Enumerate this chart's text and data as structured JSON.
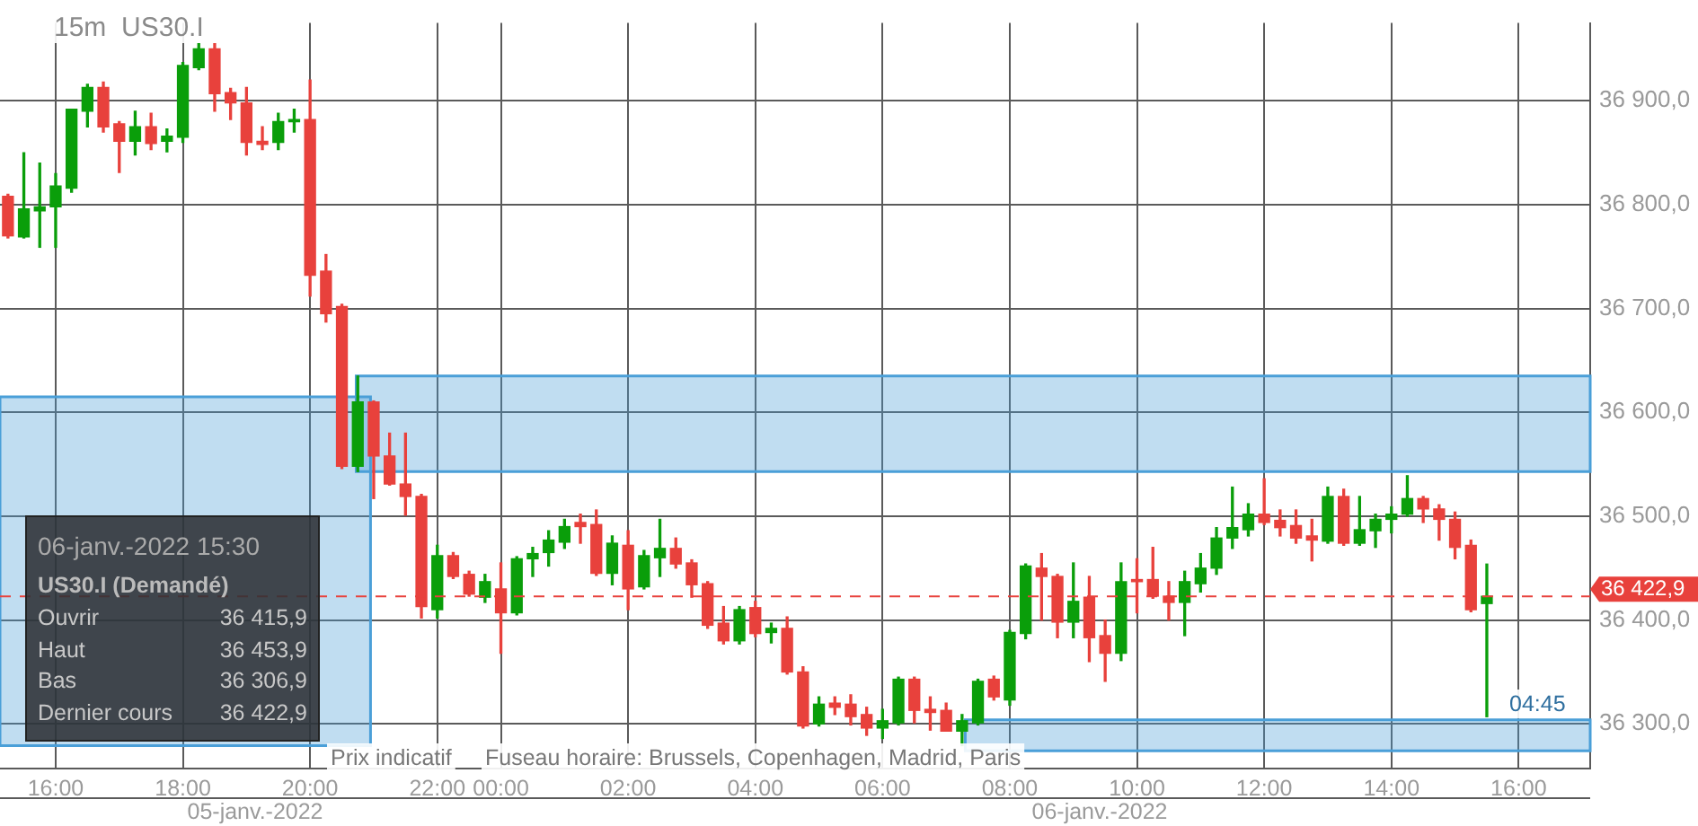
{
  "chart_data": {
    "type": "candlestick",
    "title": "15m  US30.I",
    "categories": [
      null,
      null,
      null,
      "16:00",
      null,
      null,
      null,
      null,
      null,
      null,
      null,
      "18:00",
      null,
      null,
      null,
      null,
      null,
      null,
      null,
      "20:00",
      null,
      null,
      null,
      null,
      null,
      null,
      null,
      "22:00",
      null,
      null,
      null,
      "00:00",
      null,
      null,
      null,
      null,
      null,
      null,
      null,
      "02:00",
      null,
      null,
      null,
      null,
      null,
      null,
      null,
      "04:00",
      null,
      null,
      null,
      null,
      null,
      null,
      null,
      "06:00",
      null,
      null,
      null,
      null,
      null,
      null,
      null,
      "08:00",
      null,
      null,
      null,
      null,
      null,
      null,
      null,
      "10:00",
      null,
      null,
      null,
      null,
      null,
      null,
      null,
      "12:00",
      null,
      null,
      null,
      null,
      null,
      null,
      null,
      "14:00",
      null,
      null,
      null,
      null,
      null,
      null,
      null,
      "16:00",
      null,
      null,
      null,
      null
    ],
    "ohlc": [
      [
        36808,
        36810,
        36768,
        36770
      ],
      [
        36769,
        36850,
        36768,
        36796
      ],
      [
        36794,
        36840,
        36759,
        36798
      ],
      [
        36798,
        36830,
        36759,
        36818
      ],
      [
        36816,
        36892,
        36812,
        36892
      ],
      [
        36890,
        36916,
        36875,
        36913
      ],
      [
        36913,
        36918,
        36870,
        36875
      ],
      [
        36878,
        36880,
        36831,
        36861
      ],
      [
        36861,
        36890,
        36848,
        36875
      ],
      [
        36875,
        36888,
        36853,
        36859
      ],
      [
        36861,
        36873,
        36851,
        36866
      ],
      [
        36865,
        36937,
        36860,
        36934
      ],
      [
        36932,
        36955,
        36930,
        36950
      ],
      [
        36950,
        36955,
        36890,
        36907
      ],
      [
        36908,
        36912,
        36882,
        36898
      ],
      [
        36898,
        36913,
        36848,
        36860
      ],
      [
        36861,
        36875,
        36853,
        36858
      ],
      [
        36860,
        36888,
        36853,
        36880
      ],
      [
        36880,
        36892,
        36870,
        36882
      ],
      [
        36882,
        36920,
        36712,
        36732
      ],
      [
        36736,
        36752,
        36687,
        36695
      ],
      [
        36702,
        36704,
        36546,
        36548
      ],
      [
        36548,
        36635,
        36543,
        36610
      ],
      [
        36610,
        36611,
        36517,
        36558
      ],
      [
        36558,
        36580,
        36530,
        36531
      ],
      [
        36531,
        36580,
        36501,
        36519
      ],
      [
        36519,
        36521,
        36402,
        36413
      ],
      [
        36410,
        36472,
        36402,
        36462
      ],
      [
        36462,
        36465,
        36440,
        36442
      ],
      [
        36444,
        36447,
        36423,
        36425
      ],
      [
        36422,
        36444,
        36417,
        36437
      ],
      [
        36430,
        36455,
        36368,
        36407
      ],
      [
        36407,
        36461,
        36405,
        36459
      ],
      [
        36459,
        36470,
        36442,
        36464
      ],
      [
        36465,
        36486,
        36452,
        36477
      ],
      [
        36475,
        36497,
        36469,
        36490
      ],
      [
        36494,
        36502,
        36474,
        36490
      ],
      [
        36492,
        36506,
        36443,
        36445
      ],
      [
        36445,
        36481,
        36434,
        36474
      ],
      [
        36472,
        36486,
        36410,
        36430
      ],
      [
        36432,
        36467,
        36430,
        36462
      ],
      [
        36460,
        36497,
        36442,
        36469
      ],
      [
        36469,
        36479,
        36450,
        36454
      ],
      [
        36455,
        36458,
        36422,
        36434
      ],
      [
        36435,
        36437,
        36392,
        36395
      ],
      [
        36397,
        36413,
        36377,
        36380
      ],
      [
        36380,
        36413,
        36377,
        36410
      ],
      [
        36412,
        36418,
        36384,
        36387
      ],
      [
        36388,
        36397,
        36378,
        36392
      ],
      [
        36392,
        36403,
        36348,
        36350
      ],
      [
        36350,
        36355,
        36296,
        36298
      ],
      [
        36300,
        36326,
        36298,
        36319
      ],
      [
        36320,
        36326,
        36309,
        36316
      ],
      [
        36319,
        36328,
        36299,
        36307
      ],
      [
        36309,
        36316,
        36289,
        36296
      ],
      [
        36296,
        36314,
        36286,
        36303
      ],
      [
        36301,
        36345,
        36299,
        36343
      ],
      [
        36343,
        36345,
        36301,
        36313
      ],
      [
        36314,
        36326,
        36294,
        36311
      ],
      [
        36313,
        36320,
        36293,
        36293
      ],
      [
        36293,
        36309,
        36279,
        36303
      ],
      [
        36301,
        36343,
        36299,
        36341
      ],
      [
        36343,
        36346,
        36323,
        36326
      ],
      [
        36323,
        36390,
        36318,
        36388
      ],
      [
        36387,
        36454,
        36382,
        36452
      ],
      [
        36450,
        36464,
        36400,
        36442
      ],
      [
        36442,
        36444,
        36383,
        36398
      ],
      [
        36398,
        36455,
        36383,
        36418
      ],
      [
        36422,
        36442,
        36360,
        36383
      ],
      [
        36385,
        36400,
        36341,
        36368
      ],
      [
        36368,
        36455,
        36361,
        36437
      ],
      [
        36439,
        36459,
        36407,
        36437
      ],
      [
        36439,
        36470,
        36421,
        36423
      ],
      [
        36423,
        36437,
        36400,
        36417
      ],
      [
        36417,
        36447,
        36385,
        36437
      ],
      [
        36435,
        36464,
        36427,
        36450
      ],
      [
        36450,
        36489,
        36444,
        36479
      ],
      [
        36479,
        36528,
        36469,
        36489
      ],
      [
        36487,
        36512,
        36481,
        36502
      ],
      [
        36502,
        36536,
        36492,
        36494
      ],
      [
        36496,
        36506,
        36481,
        36489
      ],
      [
        36491,
        36506,
        36474,
        36479
      ],
      [
        36481,
        36497,
        36457,
        36477
      ],
      [
        36476,
        36528,
        36474,
        36519
      ],
      [
        36519,
        36526,
        36472,
        36474
      ],
      [
        36474,
        36519,
        36472,
        36487
      ],
      [
        36486,
        36502,
        36470,
        36497
      ],
      [
        36497,
        36509,
        36484,
        36502
      ],
      [
        36502,
        36539,
        36500,
        36517
      ],
      [
        36517,
        36519,
        36494,
        36507
      ],
      [
        36507,
        36511,
        36477,
        36497
      ],
      [
        36497,
        36504,
        36459,
        36470
      ],
      [
        36472,
        36477,
        36408,
        36410
      ],
      [
        36415.9,
        36453.9,
        36306.9,
        36422.9
      ],
      null,
      null,
      null,
      null,
      null,
      null
    ],
    "colors": [
      "#e8413c",
      "#0a9e0a",
      "#0a9e0a",
      "#0a9e0a",
      "#0a9e0a",
      "#0a9e0a",
      "#e8413c",
      "#e8413c",
      "#0a9e0a",
      "#e8413c",
      "#0a9e0a",
      "#0a9e0a",
      "#0a9e0a",
      "#e8413c",
      "#e8413c",
      "#e8413c",
      "#e8413c",
      "#0a9e0a",
      "#0a9e0a",
      "#e8413c",
      "#e8413c",
      "#e8413c",
      "#0a9e0a",
      "#e8413c",
      "#e8413c",
      "#e8413c",
      "#e8413c",
      "#0a9e0a",
      "#e8413c",
      "#e8413c",
      "#0a9e0a",
      "#e8413c",
      "#0a9e0a",
      "#0a9e0a",
      "#0a9e0a",
      "#0a9e0a",
      "#e8413c",
      "#e8413c",
      "#0a9e0a",
      "#e8413c",
      "#0a9e0a",
      "#0a9e0a",
      "#e8413c",
      "#e8413c",
      "#e8413c",
      "#e8413c",
      "#0a9e0a",
      "#e8413c",
      "#0a9e0a",
      "#e8413c",
      "#e8413c",
      "#0a9e0a",
      "#e8413c",
      "#e8413c",
      "#e8413c",
      "#0a9e0a",
      "#0a9e0a",
      "#e8413c",
      "#e8413c",
      "#e8413c",
      "#0a9e0a",
      "#0a9e0a",
      "#e8413c",
      "#0a9e0a",
      "#0a9e0a",
      "#e8413c",
      "#e8413c",
      "#0a9e0a",
      "#e8413c",
      "#e8413c",
      "#0a9e0a",
      "#e8413c",
      "#e8413c",
      "#e8413c",
      "#0a9e0a",
      "#0a9e0a",
      "#0a9e0a",
      "#0a9e0a",
      "#0a9e0a",
      "#e8413c",
      "#e8413c",
      "#e8413c",
      "#e8413c",
      "#0a9e0a",
      "#e8413c",
      "#0a9e0a",
      "#0a9e0a",
      "#0a9e0a",
      "#0a9e0a",
      "#e8413c",
      "#e8413c",
      "#e8413c",
      "#e8413c",
      "#0a9e0a",
      null,
      null,
      null,
      null,
      null,
      null
    ],
    "ylim": [
      36257,
      36975
    ],
    "yticks": [
      {
        "value": 36300,
        "label": "36 300,0"
      },
      {
        "value": 36400,
        "label": "36 400,0"
      },
      {
        "value": 36500,
        "label": "36 500,0"
      },
      {
        "value": 36600,
        "label": "36 600,0"
      },
      {
        "value": 36700,
        "label": "36 700,0"
      },
      {
        "value": 36800,
        "label": "36 800,0"
      },
      {
        "value": 36900,
        "label": "36 900,0"
      }
    ],
    "grid": true,
    "ref_lines": [
      {
        "axis": "y",
        "value": 36422.9,
        "label": "36 422,9",
        "color": "#e8413c",
        "line_style": "dashed"
      }
    ],
    "bands": [
      {
        "axis": "y",
        "from": 36279,
        "to": 36615,
        "color": "#4a9fd8"
      },
      {
        "axis": "y",
        "from": 36543,
        "to": 36635,
        "color": "#4a9fd8"
      },
      {
        "axis": "y",
        "from": 36274,
        "to": 36304,
        "color": "#4a9fd8"
      }
    ],
    "annotations": [
      "06-janv.-2022 15:30",
      "US30.I (Demandé)",
      "Ouvrir",
      "36 415,9",
      "Haut",
      "36 453,9",
      "Bas",
      "36 306,9",
      "Dernier cours",
      "36 422,9",
      "Prix indicatif",
      "Fuseau horaire: Brussels, Copenhagen, Madrid, Paris",
      "05-janv.-2022",
      "06-janv.-2022",
      "04:45"
    ]
  }
}
